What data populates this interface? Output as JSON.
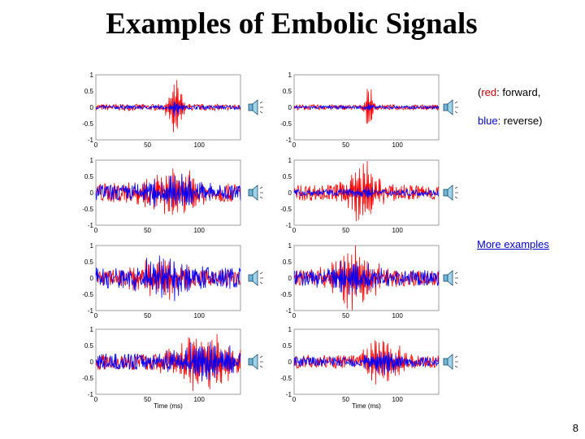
{
  "slide": {
    "title": "Examples of Embolic Signals",
    "legend": {
      "line1_open": "(",
      "red_word": "red",
      "line1_rest": ": forward,",
      "blue_word": "blue",
      "line2_rest": ": reverse)"
    },
    "more_link": "More examples",
    "page_number": "8",
    "colors": {
      "forward": "#ff0000",
      "reverse": "#0000ff"
    }
  },
  "chart_data": {
    "type": "line",
    "panels": 8,
    "x_ticks": [
      "0",
      "50",
      "100"
    ],
    "y_ticks": [
      "1",
      "0.5",
      "0",
      "-0.5",
      "-1"
    ],
    "xlabel": "Time (ms)",
    "xlim": [
      0,
      140
    ],
    "ylim": [
      -1,
      1
    ],
    "series_colors": [
      "#ff0000",
      "#0000ff"
    ],
    "speaker_icon": "speaker-icon"
  }
}
